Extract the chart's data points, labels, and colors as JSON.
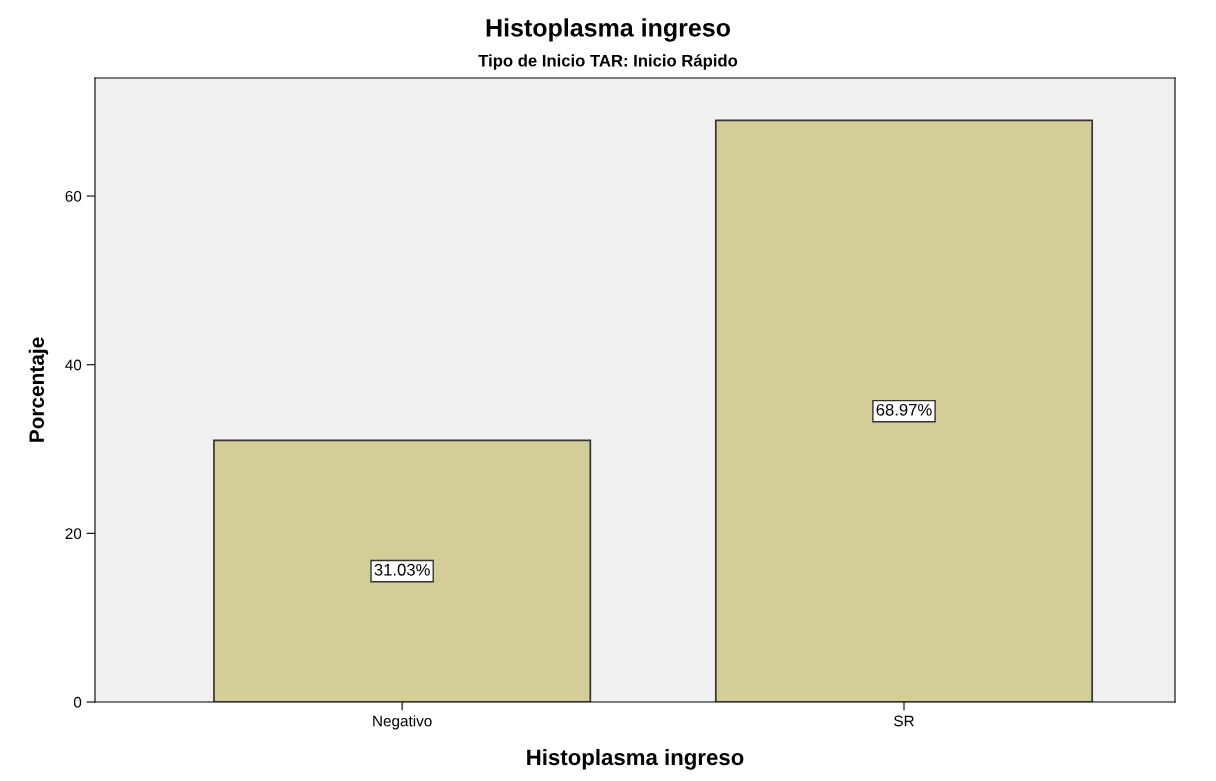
{
  "chart_data": {
    "type": "bar",
    "title": "Histoplasma ingreso",
    "subtitle": "Tipo de Inicio TAR: Inicio Rápido",
    "xlabel": "Histoplasma ingreso",
    "ylabel": "Porcentaje",
    "categories": [
      "Negativo",
      "SR"
    ],
    "values": [
      31.03,
      68.97
    ],
    "value_labels": [
      "31.03%",
      "68.97%"
    ],
    "color": "#d3ce97",
    "ylim": [
      0,
      74
    ],
    "yticks": [
      0,
      20,
      40,
      60
    ],
    "grid": false
  }
}
